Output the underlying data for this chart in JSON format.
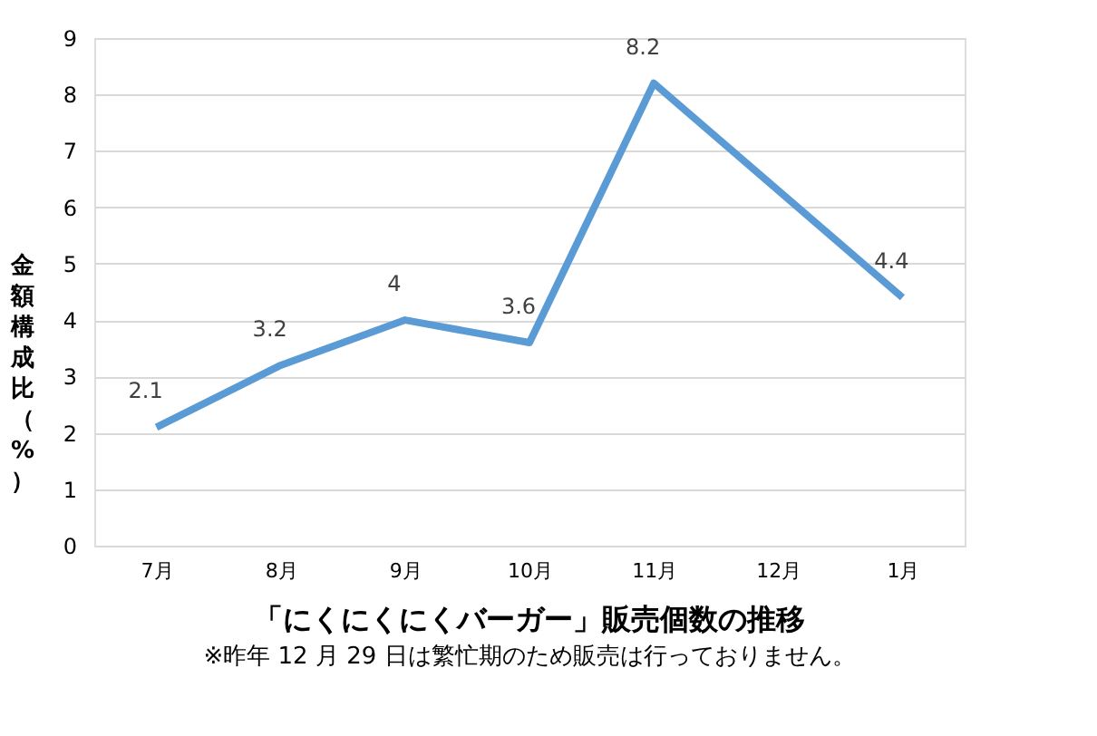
{
  "chart_data": {
    "type": "line",
    "title": "「にくにくにくバーガー」販売個数の推移",
    "ylabel": "金額構成比（%）",
    "categories": [
      "7月",
      "8月",
      "9月",
      "10月",
      "11月",
      "12月",
      "1月"
    ],
    "series": [
      {
        "color": "#5b9bd5",
        "values": [
          2.1,
          3.2,
          4,
          3.6,
          8.2,
          6.3,
          4.4
        ],
        "value_labels": [
          "2.1",
          "3.2",
          "4",
          "3.6",
          "8.2",
          null,
          "4.4"
        ]
      }
    ],
    "ylim": [
      0,
      9
    ],
    "yticks": [
      0,
      1,
      2,
      3,
      4,
      5,
      6,
      7,
      8,
      9
    ],
    "grid": "y",
    "legend": false,
    "marker": "none",
    "line_style": "solid",
    "annotations": [
      "※昨年 12 月 29 日は繁忙期のため販売は行っておりません。"
    ]
  }
}
